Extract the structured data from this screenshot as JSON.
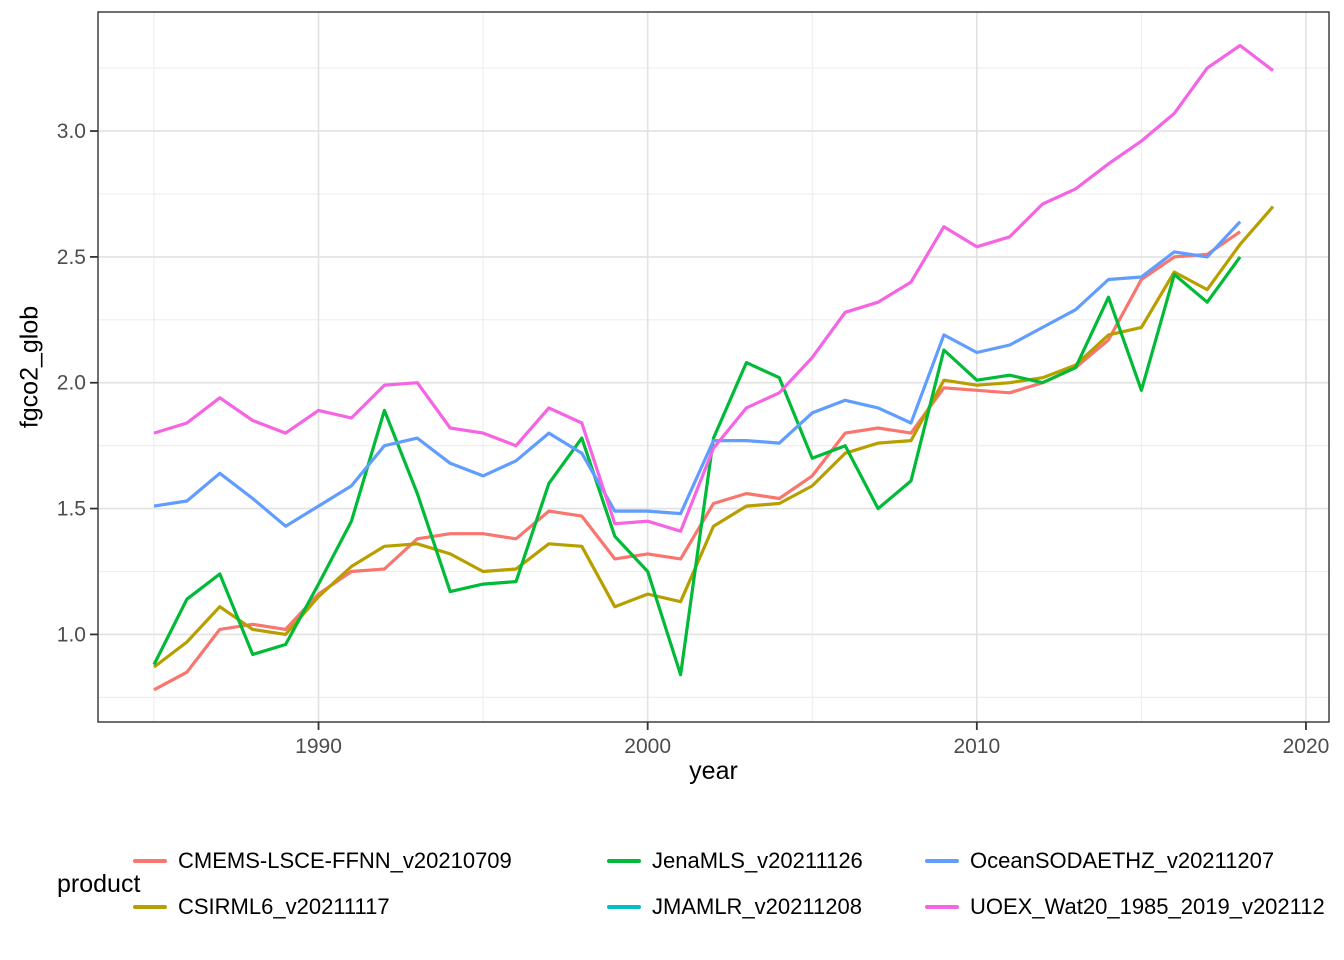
{
  "colors": {
    "background": "#FFFFFF",
    "panel_border": "#333333",
    "grid_major": "#E2E2E2",
    "grid_minor": "#EDEDED",
    "tick_mark": "#333333",
    "axis_text": "#4D4D4D",
    "axis_title": "#000000"
  },
  "chart_data": {
    "type": "line",
    "title": "",
    "xlabel": "year",
    "ylabel": "fgco2_glob",
    "legend_title": "product",
    "legend_position": "bottom",
    "grid": true,
    "xlim": [
      1983.3,
      2020.7
    ],
    "ylim": [
      0.652,
      3.473
    ],
    "x_ticks": [
      1990,
      2000,
      2010,
      2020
    ],
    "x_tick_labels": [
      "1990",
      "2000",
      "2010",
      "2020"
    ],
    "x_minor_ticks": [
      1985,
      1995,
      2005,
      2015
    ],
    "y_ticks": [
      1.0,
      1.5,
      2.0,
      2.5,
      3.0
    ],
    "y_tick_labels": [
      "1.0",
      "1.5",
      "2.0",
      "2.5",
      "3.0"
    ],
    "y_minor_ticks": [
      0.75,
      1.25,
      1.75,
      2.25,
      2.75,
      3.25
    ],
    "series": [
      {
        "name": "CMEMS-LSCE-FFNN_v20210709",
        "key": "cmems-lsce-ffnn",
        "color": "#F8766D",
        "years": [
          1985,
          1986,
          1987,
          1988,
          1989,
          1990,
          1991,
          1992,
          1993,
          1994,
          1995,
          1996,
          1997,
          1998,
          1999,
          2000,
          2001,
          2002,
          2003,
          2004,
          2005,
          2006,
          2007,
          2008,
          2009,
          2010,
          2011,
          2012,
          2013,
          2014,
          2015,
          2016,
          2017,
          2018
        ],
        "values": [
          0.78,
          0.85,
          1.02,
          1.04,
          1.02,
          1.16,
          1.25,
          1.26,
          1.38,
          1.4,
          1.4,
          1.38,
          1.49,
          1.47,
          1.3,
          1.32,
          1.3,
          1.52,
          1.56,
          1.54,
          1.63,
          1.8,
          1.82,
          1.8,
          1.98,
          1.97,
          1.96,
          2.0,
          2.06,
          2.17,
          2.41,
          2.5,
          2.51,
          2.6
        ]
      },
      {
        "name": "CSIRML6_v20211117",
        "key": "csirml6",
        "color": "#B79F00",
        "years": [
          1985,
          1986,
          1987,
          1988,
          1989,
          1990,
          1991,
          1992,
          1993,
          1994,
          1995,
          1996,
          1997,
          1998,
          1999,
          2000,
          2001,
          2002,
          2003,
          2004,
          2005,
          2006,
          2007,
          2008,
          2009,
          2010,
          2011,
          2012,
          2013,
          2014,
          2015,
          2016,
          2017,
          2018,
          2019
        ],
        "values": [
          0.87,
          0.97,
          1.11,
          1.02,
          1.0,
          1.15,
          1.27,
          1.35,
          1.36,
          1.32,
          1.25,
          1.26,
          1.36,
          1.35,
          1.11,
          1.16,
          1.13,
          1.43,
          1.51,
          1.52,
          1.59,
          1.72,
          1.76,
          1.77,
          2.01,
          1.99,
          2.0,
          2.02,
          2.07,
          2.19,
          2.22,
          2.44,
          2.37,
          2.55,
          2.7
        ]
      },
      {
        "name": "JenaMLS_v20211126",
        "key": "jenamls",
        "color": "#00BA38",
        "years": [
          1985,
          1986,
          1987,
          1988,
          1989,
          1990,
          1991,
          1992,
          1993,
          1994,
          1995,
          1996,
          1997,
          1998,
          1999,
          2000,
          2001,
          2002,
          2003,
          2004,
          2005,
          2006,
          2007,
          2008,
          2009,
          2010,
          2011,
          2012,
          2013,
          2014,
          2015,
          2016,
          2017,
          2018
        ],
        "values": [
          0.88,
          1.14,
          1.24,
          0.92,
          0.96,
          1.2,
          1.45,
          1.89,
          1.56,
          1.17,
          1.2,
          1.21,
          1.6,
          1.78,
          1.39,
          1.25,
          0.84,
          1.78,
          2.08,
          2.02,
          1.7,
          1.75,
          1.5,
          1.61,
          2.13,
          2.01,
          2.03,
          2.0,
          2.06,
          2.34,
          1.97,
          2.43,
          2.32,
          2.5
        ]
      },
      {
        "name": "JMAMLR_v20211208",
        "key": "jmamlr",
        "color": "#00BFC4",
        "years": [],
        "values": []
      },
      {
        "name": "OceanSODAETHZ_v20211207",
        "key": "oceansodaethz",
        "color": "#619CFF",
        "years": [
          1985,
          1986,
          1987,
          1988,
          1989,
          1990,
          1991,
          1992,
          1993,
          1994,
          1995,
          1996,
          1997,
          1998,
          1999,
          2000,
          2001,
          2002,
          2003,
          2004,
          2005,
          2006,
          2007,
          2008,
          2009,
          2010,
          2011,
          2012,
          2013,
          2014,
          2015,
          2016,
          2017,
          2018
        ],
        "values": [
          1.51,
          1.53,
          1.64,
          1.54,
          1.43,
          1.51,
          1.59,
          1.75,
          1.78,
          1.68,
          1.63,
          1.69,
          1.8,
          1.72,
          1.49,
          1.49,
          1.48,
          1.77,
          1.77,
          1.76,
          1.88,
          1.93,
          1.9,
          1.84,
          2.19,
          2.12,
          2.15,
          2.22,
          2.29,
          2.41,
          2.42,
          2.52,
          2.5,
          2.64
        ]
      },
      {
        "name": "UOEX_Wat20_1985_2019_v202112",
        "key": "uoex-wat20",
        "color": "#F564E3",
        "years": [
          1985,
          1986,
          1987,
          1988,
          1989,
          1990,
          1991,
          1992,
          1993,
          1994,
          1995,
          1996,
          1997,
          1998,
          1999,
          2000,
          2001,
          2002,
          2003,
          2004,
          2005,
          2006,
          2007,
          2008,
          2009,
          2010,
          2011,
          2012,
          2013,
          2014,
          2015,
          2016,
          2017,
          2018,
          2019
        ],
        "values": [
          1.8,
          1.84,
          1.94,
          1.85,
          1.8,
          1.89,
          1.86,
          1.99,
          2.0,
          1.82,
          1.8,
          1.75,
          1.9,
          1.84,
          1.44,
          1.45,
          1.41,
          1.74,
          1.9,
          1.96,
          2.1,
          2.28,
          2.32,
          2.4,
          2.62,
          2.54,
          2.58,
          2.71,
          2.77,
          2.87,
          2.96,
          3.07,
          3.25,
          3.34,
          3.24
        ]
      }
    ]
  }
}
